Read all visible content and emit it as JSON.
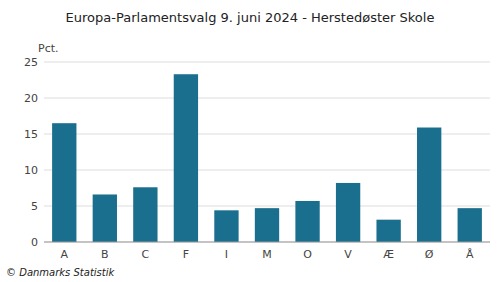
{
  "chart_data": {
    "type": "bar",
    "title": "Europa-Parlamentsvalg 9. juni 2024 - Herstedøster Skole",
    "ylabel": "Pct.",
    "annotations": [
      "© Danmarks Statistik"
    ],
    "categories": [
      "A",
      "B",
      "C",
      "F",
      "I",
      "M",
      "O",
      "V",
      "Æ",
      "Ø",
      "Å"
    ],
    "values": [
      16.5,
      6.6,
      7.6,
      23.3,
      4.4,
      4.7,
      5.7,
      8.2,
      3.1,
      15.9,
      4.7
    ],
    "color": "#1a6e8e",
    "ylim": [
      0,
      25
    ],
    "yticks": [
      0,
      5,
      10,
      15,
      20,
      25
    ],
    "grid": true
  }
}
